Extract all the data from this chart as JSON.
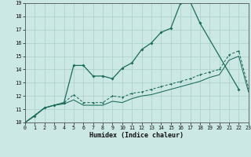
{
  "title": "",
  "xlabel": "Humidex (Indice chaleur)",
  "bg_color": "#cce8e4",
  "grid_color": "#aacfcb",
  "line_color": "#1a6b5a",
  "xlim": [
    0,
    23
  ],
  "ylim": [
    10,
    19
  ],
  "xticks": [
    0,
    1,
    2,
    3,
    4,
    5,
    6,
    7,
    8,
    9,
    10,
    11,
    12,
    13,
    14,
    15,
    16,
    17,
    18,
    19,
    20,
    21,
    22,
    23
  ],
  "yticks": [
    10,
    11,
    12,
    13,
    14,
    15,
    16,
    17,
    18,
    19
  ],
  "curve1_x": [
    0,
    1,
    2,
    3,
    4,
    5,
    6,
    7,
    8,
    9,
    10,
    11,
    12,
    13,
    14,
    15,
    16,
    17,
    18,
    22
  ],
  "curve1_y": [
    10,
    10.5,
    11.1,
    11.3,
    11.5,
    14.3,
    14.3,
    13.5,
    13.5,
    13.3,
    14.1,
    14.5,
    15.5,
    16.0,
    16.8,
    17.1,
    19.0,
    19.1,
    17.5,
    12.5
  ],
  "curve2_x": [
    0,
    2,
    3,
    4,
    5,
    6,
    7,
    8,
    9,
    10,
    11,
    12,
    13,
    14,
    15,
    16,
    17,
    18,
    19,
    20,
    21,
    22,
    23
  ],
  "curve2_y": [
    10,
    11.1,
    11.3,
    11.5,
    12.1,
    11.5,
    11.5,
    11.5,
    12.0,
    11.9,
    12.2,
    12.3,
    12.5,
    12.7,
    12.9,
    13.1,
    13.3,
    13.6,
    13.8,
    14.0,
    15.1,
    15.4,
    12.6
  ],
  "curve3_x": [
    0,
    2,
    3,
    4,
    5,
    6,
    7,
    8,
    9,
    10,
    11,
    12,
    13,
    14,
    15,
    16,
    17,
    18,
    19,
    20,
    21,
    22,
    23
  ],
  "curve3_y": [
    10,
    11.1,
    11.3,
    11.4,
    11.7,
    11.3,
    11.3,
    11.3,
    11.6,
    11.5,
    11.8,
    12.0,
    12.1,
    12.3,
    12.5,
    12.7,
    12.9,
    13.1,
    13.4,
    13.6,
    14.7,
    15.0,
    12.3
  ]
}
